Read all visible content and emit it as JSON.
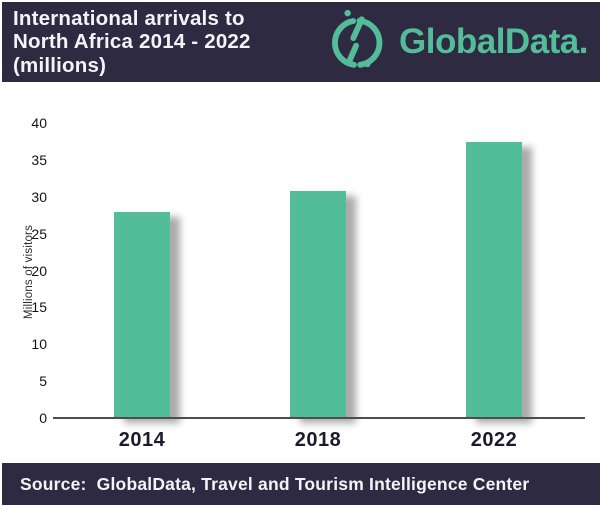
{
  "header": {
    "title_lines": [
      "International arrivals to",
      "North Africa 2014 - 2022",
      "(millions)"
    ],
    "logo_text": "GlobalData."
  },
  "chart_data": {
    "type": "bar",
    "title": "International arrivals to North Africa 2014 - 2022 (millions)",
    "categories": [
      "2014",
      "2018",
      "2022"
    ],
    "values": [
      28,
      30.8,
      37.4
    ],
    "xlabel": "",
    "ylabel": "Millions of visitors",
    "ylim": [
      0,
      40
    ],
    "yticks": [
      0,
      5,
      10,
      15,
      20,
      25,
      30,
      35,
      40
    ],
    "grid": false,
    "legend": "none",
    "bar_color": "#52bd98"
  },
  "footer": {
    "source_text": "Source:  GlobalData, Travel and Tourism Intelligence Center"
  },
  "colors": {
    "banner_bg": "#2e2a42",
    "accent_green": "#52bd98",
    "banner_text": "#f4f3f7",
    "axis_text": "#141414",
    "category_text": "#1c1b2e"
  }
}
